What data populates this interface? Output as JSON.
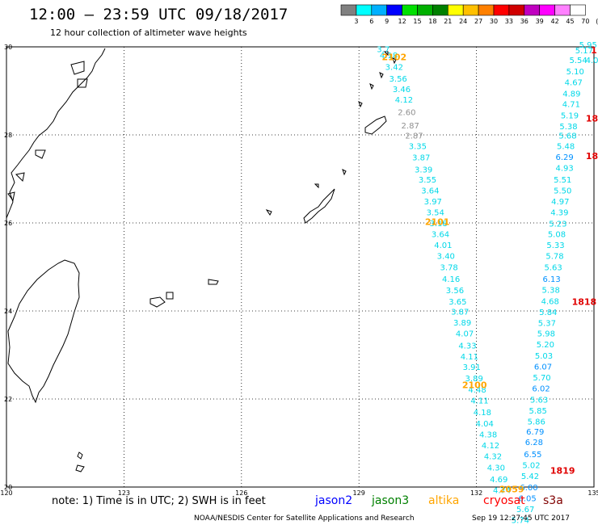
{
  "header": {
    "title": "12:00 — 23:59 UTC 09/18/2017",
    "subtitle": "12 hour collection of altimeter wave heights"
  },
  "colorbar": {
    "labels": [
      "3",
      "6",
      "9",
      "12",
      "15",
      "18",
      "21",
      "24",
      "27",
      "30",
      "33",
      "36",
      "39",
      "42",
      "45",
      "70",
      "(ft)"
    ],
    "colors": [
      "#808080",
      "#00ffff",
      "#00b0ff",
      "#0000ff",
      "#00e000",
      "#00b000",
      "#008000",
      "#ffff00",
      "#ffc000",
      "#ff8000",
      "#ff0000",
      "#d00000",
      "#c000c0",
      "#ff00ff",
      "#ff80ff",
      "#ffffff"
    ]
  },
  "footer": {
    "note": "note: 1) Time is in UTC; 2) SWH is in feet",
    "satellites": [
      {
        "name": "jason2",
        "color": "#0000ff"
      },
      {
        "name": "jason3",
        "color": "#008000"
      },
      {
        "name": "altika",
        "color": "#ffa500"
      },
      {
        "name": "cryosat",
        "color": "#ff0000"
      },
      {
        "name": "s3a",
        "color": "#800000"
      }
    ],
    "credit": "NOAA/NESDIS Center for Satellite Applications and Research",
    "timestamp": "Sep 19 12:27:45 UTC 2017"
  },
  "chart_data": {
    "type": "scatter",
    "xlim": [
      120,
      135
    ],
    "ylim": [
      20,
      30
    ],
    "xticks": [
      "120",
      "123",
      "126",
      "129",
      "132",
      "135"
    ],
    "yticks": [
      "30",
      "28",
      "26",
      "24",
      "22",
      "20"
    ],
    "tracks": [
      {
        "time_labels": [
          {
            "text": "2102",
            "lon": 129.9,
            "lat": 29.7
          },
          {
            "text": "2101",
            "lon": 131.0,
            "lat": 25.95
          },
          {
            "text": "2100",
            "lon": 131.95,
            "lat": 22.25
          }
        ],
        "time_color": "#ffa500",
        "points": [
          {
            "v": "3.7",
            "lon": 129.62,
            "lat": 29.88,
            "c": "#00d8e8"
          },
          {
            "v": "4.18",
            "lon": 129.76,
            "lat": 29.74,
            "c": "#00d8e8"
          },
          {
            "v": "3.42",
            "lon": 129.9,
            "lat": 29.48,
            "c": "#00d8e8"
          },
          {
            "v": "3.56",
            "lon": 130.0,
            "lat": 29.21,
            "c": "#00d8e8"
          },
          {
            "v": "3.46",
            "lon": 130.09,
            "lat": 28.97,
            "c": "#00d8e8"
          },
          {
            "v": "4.12",
            "lon": 130.15,
            "lat": 28.73,
            "c": "#00d8e8"
          },
          {
            "v": "2.60",
            "lon": 130.22,
            "lat": 28.45,
            "c": "#909090"
          },
          {
            "v": "2.87",
            "lon": 130.31,
            "lat": 28.15,
            "c": "#909090"
          },
          {
            "v": "2.87",
            "lon": 130.41,
            "lat": 27.92,
            "c": "#909090"
          },
          {
            "v": "3.35",
            "lon": 130.5,
            "lat": 27.68,
            "c": "#00d8e8"
          },
          {
            "v": "3.87",
            "lon": 130.59,
            "lat": 27.42,
            "c": "#00d8e8"
          },
          {
            "v": "3.39",
            "lon": 130.65,
            "lat": 27.15,
            "c": "#00d8e8"
          },
          {
            "v": "3.55",
            "lon": 130.75,
            "lat": 26.92,
            "c": "#00d8e8"
          },
          {
            "v": "3.64",
            "lon": 130.82,
            "lat": 26.67,
            "c": "#00d8e8"
          },
          {
            "v": "3.97",
            "lon": 130.89,
            "lat": 26.42,
            "c": "#00d8e8"
          },
          {
            "v": "3.54",
            "lon": 130.95,
            "lat": 26.17,
            "c": "#00d8e8"
          },
          {
            "v": "3.18",
            "lon": 131.03,
            "lat": 25.93,
            "c": "#00d8e8"
          },
          {
            "v": "3.64",
            "lon": 131.08,
            "lat": 25.68,
            "c": "#00d8e8"
          },
          {
            "v": "4.01",
            "lon": 131.15,
            "lat": 25.43,
            "c": "#00d8e8"
          },
          {
            "v": "3.40",
            "lon": 131.22,
            "lat": 25.18,
            "c": "#00d8e8"
          },
          {
            "v": "3.78",
            "lon": 131.3,
            "lat": 24.93,
            "c": "#00d8e8"
          },
          {
            "v": "4.16",
            "lon": 131.35,
            "lat": 24.66,
            "c": "#00d8e8"
          },
          {
            "v": "3.56",
            "lon": 131.45,
            "lat": 24.4,
            "c": "#00d8e8"
          },
          {
            "v": "3.65",
            "lon": 131.52,
            "lat": 24.15,
            "c": "#00d8e8"
          },
          {
            "v": "3.87",
            "lon": 131.58,
            "lat": 23.92,
            "c": "#00d8e8"
          },
          {
            "v": "3.89",
            "lon": 131.64,
            "lat": 23.67,
            "c": "#00d8e8"
          },
          {
            "v": "4.07",
            "lon": 131.7,
            "lat": 23.42,
            "c": "#00d8e8"
          },
          {
            "v": "4.33",
            "lon": 131.77,
            "lat": 23.15,
            "c": "#00d8e8"
          },
          {
            "v": "4.11",
            "lon": 131.82,
            "lat": 22.9,
            "c": "#00d8e8"
          },
          {
            "v": "3.91",
            "lon": 131.88,
            "lat": 22.66,
            "c": "#00d8e8"
          },
          {
            "v": "3.89",
            "lon": 131.94,
            "lat": 22.4,
            "c": "#00d8e8"
          },
          {
            "v": "4.48",
            "lon": 132.02,
            "lat": 22.15,
            "c": "#00d8e8"
          },
          {
            "v": "4.11",
            "lon": 132.08,
            "lat": 21.9,
            "c": "#00d8e8"
          },
          {
            "v": "4.18",
            "lon": 132.15,
            "lat": 21.63,
            "c": "#00d8e8"
          },
          {
            "v": "4.04",
            "lon": 132.21,
            "lat": 21.38,
            "c": "#00d8e8"
          },
          {
            "v": "4.38",
            "lon": 132.3,
            "lat": 21.13,
            "c": "#00d8e8"
          },
          {
            "v": "4.12",
            "lon": 132.36,
            "lat": 20.88,
            "c": "#00d8e8"
          },
          {
            "v": "4.32",
            "lon": 132.42,
            "lat": 20.63,
            "c": "#00d8e8"
          },
          {
            "v": "4.30",
            "lon": 132.5,
            "lat": 20.38,
            "c": "#00d8e8"
          },
          {
            "v": "4.69",
            "lon": 132.57,
            "lat": 20.11,
            "c": "#00d8e8"
          },
          {
            "v": "4.74",
            "lon": 132.65,
            "lat": 19.86,
            "c": "#00d8e8"
          }
        ]
      },
      {
        "time_labels": [
          {
            "text": "2059",
            "lon": 132.9,
            "lat": 19.88
          }
        ],
        "time_color": "#ffa500",
        "points": []
      },
      {
        "time_labels": [
          {
            "text": "1818",
            "lon": 134.75,
            "lat": 24.14
          },
          {
            "text": "1819",
            "lon": 134.2,
            "lat": 20.3
          },
          {
            "text": "18",
            "lon": 134.95,
            "lat": 28.3
          },
          {
            "text": "18",
            "lon": 134.95,
            "lat": 27.45
          },
          {
            "text": "1",
            "lon": 135.0,
            "lat": 29.85
          }
        ],
        "time_color": "#e00000",
        "points": [
          {
            "v": "5.95",
            "lon": 134.85,
            "lat": 29.98,
            "c": "#00d8e8"
          },
          {
            "v": "5.17",
            "lon": 134.75,
            "lat": 29.85,
            "c": "#00d8e8"
          },
          {
            "v": "5.54",
            "lon": 134.6,
            "lat": 29.63,
            "c": "#00d8e8"
          },
          {
            "v": "4.0",
            "lon": 134.95,
            "lat": 29.63,
            "c": "#00d8e8"
          },
          {
            "v": "5.10",
            "lon": 134.52,
            "lat": 29.38,
            "c": "#00d8e8"
          },
          {
            "v": "4.67",
            "lon": 134.48,
            "lat": 29.13,
            "c": "#00d8e8"
          },
          {
            "v": "4.89",
            "lon": 134.43,
            "lat": 28.87,
            "c": "#00d8e8"
          },
          {
            "v": "4.71",
            "lon": 134.42,
            "lat": 28.63,
            "c": "#00d8e8"
          },
          {
            "v": "5.19",
            "lon": 134.38,
            "lat": 28.38,
            "c": "#00d8e8"
          },
          {
            "v": "5.38",
            "lon": 134.35,
            "lat": 28.13,
            "c": "#00d8e8"
          },
          {
            "v": "5.68",
            "lon": 134.33,
            "lat": 27.92,
            "c": "#00d8e8"
          },
          {
            "v": "5.48",
            "lon": 134.28,
            "lat": 27.68,
            "c": "#00d8e8"
          },
          {
            "v": "6.29",
            "lon": 134.25,
            "lat": 27.43,
            "c": "#0090ff"
          },
          {
            "v": "4.93",
            "lon": 134.25,
            "lat": 27.18,
            "c": "#00d8e8"
          },
          {
            "v": "5.51",
            "lon": 134.2,
            "lat": 26.92,
            "c": "#00d8e8"
          },
          {
            "v": "5.50",
            "lon": 134.2,
            "lat": 26.67,
            "c": "#00d8e8"
          },
          {
            "v": "4.97",
            "lon": 134.14,
            "lat": 26.42,
            "c": "#00d8e8"
          },
          {
            "v": "4.39",
            "lon": 134.12,
            "lat": 26.17,
            "c": "#00d8e8"
          },
          {
            "v": "5.23",
            "lon": 134.08,
            "lat": 25.92,
            "c": "#00d8e8"
          },
          {
            "v": "5.08",
            "lon": 134.05,
            "lat": 25.68,
            "c": "#00d8e8"
          },
          {
            "v": "5.33",
            "lon": 134.02,
            "lat": 25.43,
            "c": "#00d8e8"
          },
          {
            "v": "5.78",
            "lon": 134.0,
            "lat": 25.18,
            "c": "#00d8e8"
          },
          {
            "v": "5.63",
            "lon": 133.96,
            "lat": 24.93,
            "c": "#00d8e8"
          },
          {
            "v": "6.13",
            "lon": 133.92,
            "lat": 24.66,
            "c": "#0090ff"
          },
          {
            "v": "5.38",
            "lon": 133.9,
            "lat": 24.41,
            "c": "#00d8e8"
          },
          {
            "v": "4.68",
            "lon": 133.88,
            "lat": 24.16,
            "c": "#00d8e8"
          },
          {
            "v": "5.84",
            "lon": 133.83,
            "lat": 23.91,
            "c": "#00d8e8"
          },
          {
            "v": "5.37",
            "lon": 133.8,
            "lat": 23.66,
            "c": "#00d8e8"
          },
          {
            "v": "5.98",
            "lon": 133.78,
            "lat": 23.42,
            "c": "#00d8e8"
          },
          {
            "v": "5.20",
            "lon": 133.76,
            "lat": 23.17,
            "c": "#00d8e8"
          },
          {
            "v": "5.03",
            "lon": 133.72,
            "lat": 22.92,
            "c": "#00d8e8"
          },
          {
            "v": "6.07",
            "lon": 133.7,
            "lat": 22.67,
            "c": "#0090ff"
          },
          {
            "v": "5.70",
            "lon": 133.67,
            "lat": 22.42,
            "c": "#00d8e8"
          },
          {
            "v": "6.02",
            "lon": 133.65,
            "lat": 22.17,
            "c": "#0090ff"
          },
          {
            "v": "5.63",
            "lon": 133.6,
            "lat": 21.92,
            "c": "#00d8e8"
          },
          {
            "v": "5.85",
            "lon": 133.57,
            "lat": 21.67,
            "c": "#00d8e8"
          },
          {
            "v": "5.86",
            "lon": 133.53,
            "lat": 21.42,
            "c": "#00d8e8"
          },
          {
            "v": "6.79",
            "lon": 133.5,
            "lat": 21.19,
            "c": "#0090ff"
          },
          {
            "v": "6.28",
            "lon": 133.47,
            "lat": 20.95,
            "c": "#0090ff"
          },
          {
            "v": "6.55",
            "lon": 133.44,
            "lat": 20.68,
            "c": "#0090ff"
          },
          {
            "v": "5.02",
            "lon": 133.4,
            "lat": 20.43,
            "c": "#00d8e8"
          },
          {
            "v": "5.42",
            "lon": 133.37,
            "lat": 20.18,
            "c": "#00d8e8"
          },
          {
            "v": "6.00",
            "lon": 133.34,
            "lat": 19.93,
            "c": "#0090ff"
          },
          {
            "v": "6.05",
            "lon": 133.3,
            "lat": 19.68,
            "c": "#0090ff"
          },
          {
            "v": "5.67",
            "lon": 133.25,
            "lat": 19.43,
            "c": "#00d8e8"
          },
          {
            "v": "5.74",
            "lon": 133.12,
            "lat": 19.18,
            "c": "#00d8e8"
          }
        ]
      }
    ]
  }
}
